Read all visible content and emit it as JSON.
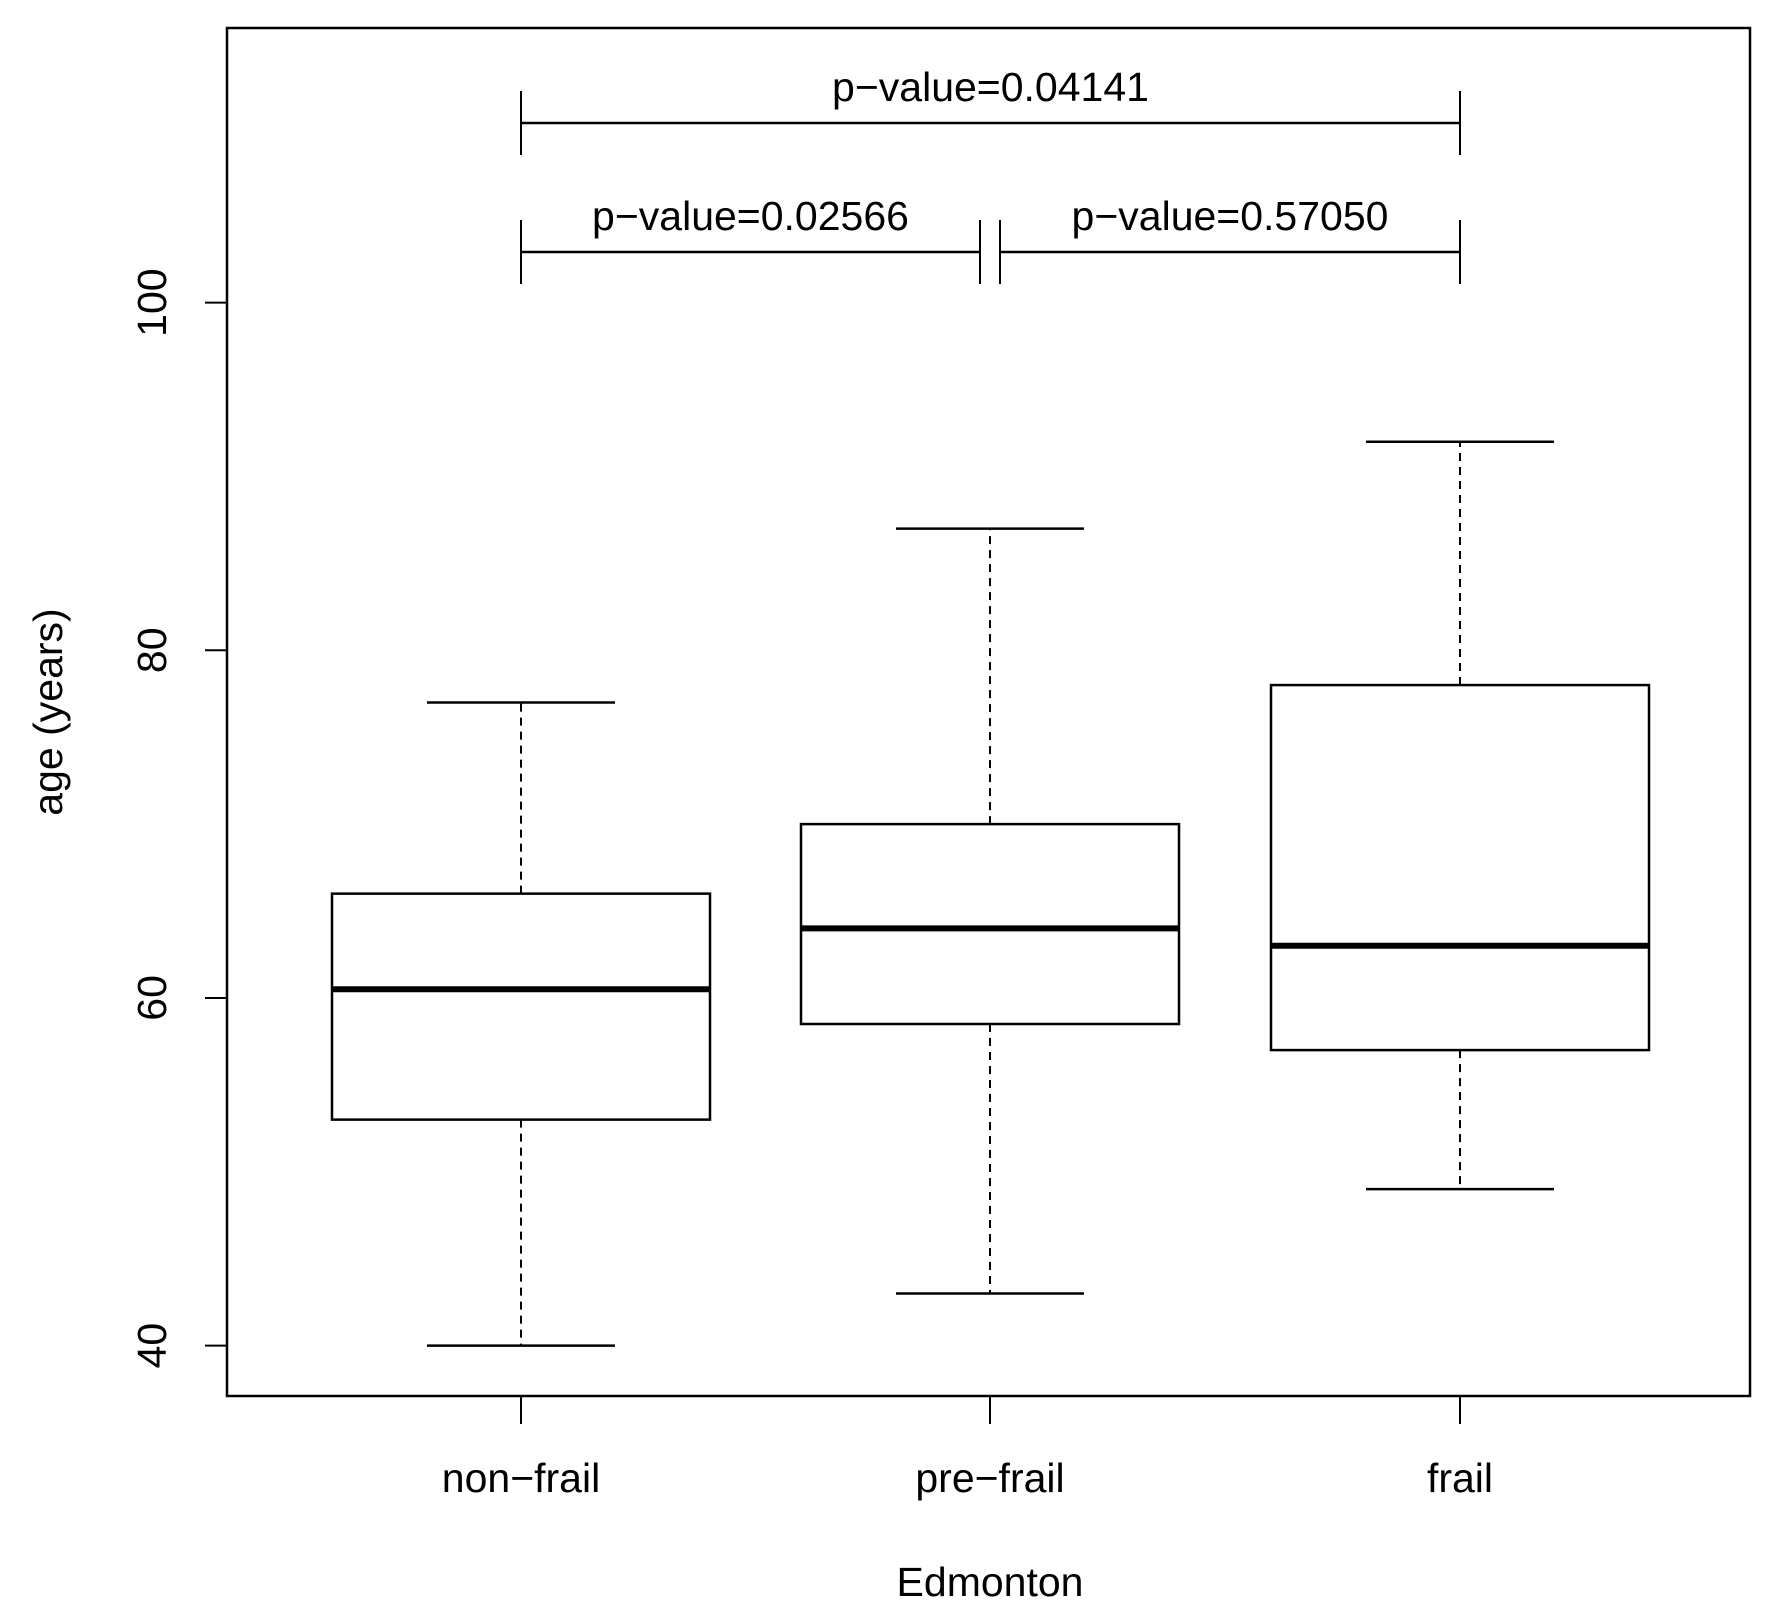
{
  "chart_data": {
    "type": "box",
    "xlabel": "Edmonton",
    "ylabel": "age (years)",
    "categories": [
      "non−frail",
      "pre−frail",
      "frail"
    ],
    "boxes": [
      {
        "low": 40,
        "q1": 53,
        "median": 60.5,
        "q3": 66,
        "high": 77
      },
      {
        "low": 43,
        "q1": 58.5,
        "median": 64,
        "q3": 70,
        "high": 87
      },
      {
        "low": 49,
        "q1": 57,
        "median": 63,
        "q3": 78,
        "high": 92
      }
    ],
    "color": "#000000",
    "ylim": [
      37.1,
      115.8
    ],
    "yticks": [
      40,
      60,
      80,
      100
    ],
    "annotations": [
      {
        "text": "p−value=0.04141",
        "from": 0,
        "to": 2
      },
      {
        "text": "p−value=0.02566",
        "from": 0,
        "to": 1
      },
      {
        "text": "p−value=0.57050",
        "from": 1,
        "to": 2
      }
    ]
  }
}
